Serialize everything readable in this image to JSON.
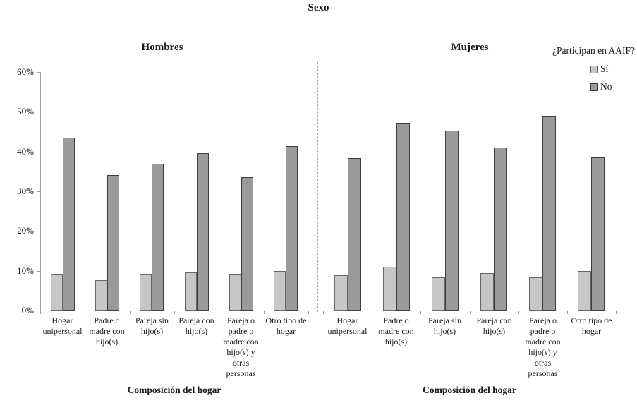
{
  "title": "Sexo",
  "legend": {
    "title": "¿Participan en AAIF?",
    "items": [
      {
        "label": "Sí",
        "fill": "#c7c7c7",
        "border": "#666666"
      },
      {
        "label": "No",
        "fill": "#9a9a9a",
        "border": "#3d3d3d"
      }
    ]
  },
  "axis": {
    "y_tick_labels": [
      "60%",
      "50%",
      "40%",
      "30%",
      "20%",
      "10%",
      "0%"
    ],
    "x_label": "Composición del hogar"
  },
  "x_display_labels": [
    "Hogar\nunipersonal",
    "Padre o\nmadre con\nhijo(s)",
    "Pareja sin\nhijo(s)",
    "Pareja con\nhijo(s)",
    "Pareja o\npadre o\nmadre con\nhijo(s) y\notras\npersonas",
    "Otro tipo de\nhogar"
  ],
  "chart_data": {
    "type": "bar",
    "title": "Sexo",
    "categories": [
      "Hogar unipersonal",
      "Padre o madre con hijo(s)",
      "Pareja sin hijo(s)",
      "Pareja con hijo(s)",
      "Pareja o padre o madre con hijo(s) y otras personas",
      "Otro tipo de hogar"
    ],
    "panels": [
      {
        "name": "Hombres",
        "series": [
          {
            "name": "Sí",
            "values": [
              9.2,
              7.7,
              9.3,
              9.6,
              9.3,
              10.0
            ]
          },
          {
            "name": "No",
            "values": [
              43.5,
              34.0,
              36.9,
              39.6,
              33.6,
              41.3
            ]
          }
        ]
      },
      {
        "name": "Mujeres",
        "series": [
          {
            "name": "Sí",
            "values": [
              8.8,
              11.0,
              8.4,
              9.4,
              8.3,
              10.0
            ]
          },
          {
            "name": "No",
            "values": [
              38.3,
              47.2,
              45.3,
              41.0,
              48.8,
              38.6
            ]
          }
        ]
      }
    ],
    "ylim": [
      0,
      60
    ],
    "ylabel": "",
    "xlabel": "Composición del hogar",
    "legend_title": "¿Participan en AAIF?",
    "legend_entries": [
      "Sí",
      "No"
    ],
    "legend_position": "top-right",
    "grid": false,
    "colors": {
      "si_fill": "#c7c7c7",
      "si_border": "#666666",
      "no_fill": "#9a9a9a",
      "no_border": "#3d3d3d"
    }
  }
}
